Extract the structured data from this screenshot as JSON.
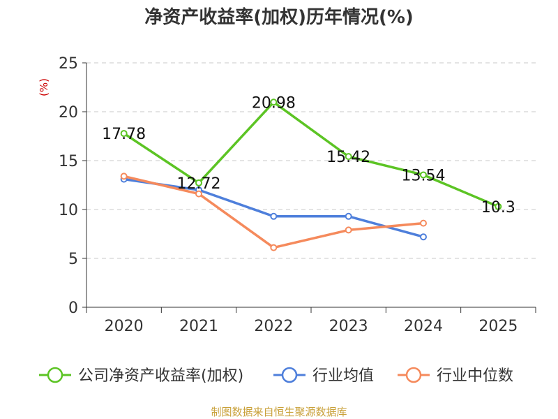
{
  "chart_data": {
    "type": "line",
    "title": "净资产收益率(加权)历年情况(%)",
    "ylabel": "(%)",
    "xlabel": "",
    "ylim": [
      0,
      25
    ],
    "yticks": [
      0,
      5,
      10,
      15,
      20,
      25
    ],
    "categories": [
      "2020",
      "2021",
      "2022",
      "2023",
      "2024",
      "2025"
    ],
    "grid": true,
    "legend_position": "bottom",
    "series": [
      {
        "name": "公司净资产收益率(加权)",
        "color": "#5cc424",
        "values": [
          17.78,
          12.72,
          20.98,
          15.42,
          13.54,
          10.3
        ],
        "labels": [
          "17.78",
          "12.72",
          "20.98",
          "15.42",
          "13.54",
          "10.3"
        ]
      },
      {
        "name": "行业均值",
        "color": "#4e7fdb",
        "values": [
          13.1,
          12.0,
          9.3,
          9.3,
          7.2,
          null
        ]
      },
      {
        "name": "行业中位数",
        "color": "#f58a5c",
        "values": [
          13.4,
          11.6,
          6.1,
          7.9,
          8.6,
          null
        ]
      }
    ],
    "source": "制图数据来自恒生聚源数据库",
    "colors": {
      "unit": "#cc0000",
      "source": "#c9a13a",
      "grid": "#c8c8c8",
      "axis": "#333333"
    }
  }
}
